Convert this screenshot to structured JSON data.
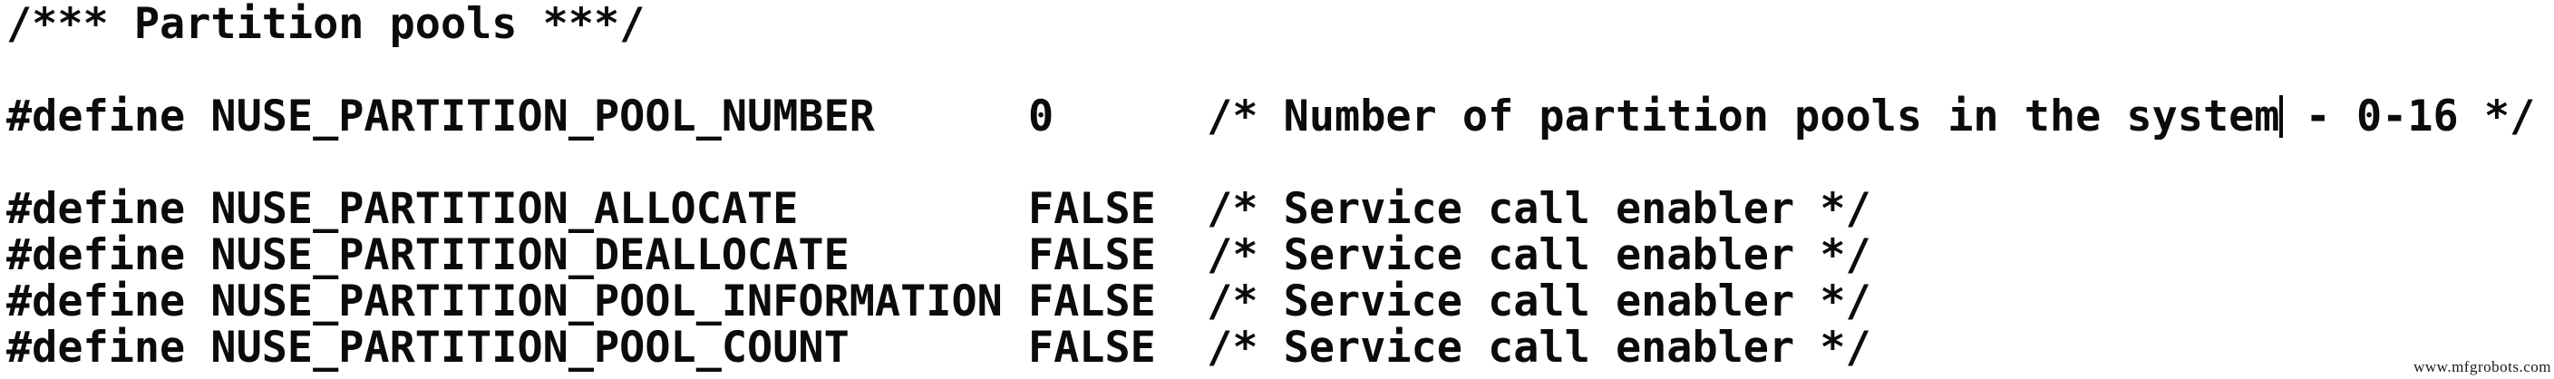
{
  "page": {
    "background_color": "#ffffff",
    "text_color": "#0b0b0b"
  },
  "code": {
    "header_comment": "/*** Partition pools ***/",
    "defines": [
      {
        "directive": "#define",
        "name": "NUSE_PARTITION_POOL_NUMBER",
        "value": "0",
        "comment_before_cursor": "/* Number of partition pools in the system",
        "comment_after_cursor": " - 0-16 */"
      },
      {
        "directive": "#define",
        "name": "NUSE_PARTITION_ALLOCATE",
        "value": "FALSE",
        "comment": "/* Service call enabler */"
      },
      {
        "directive": "#define",
        "name": "NUSE_PARTITION_DEALLOCATE",
        "value": "FALSE",
        "comment": "/* Service call enabler */"
      },
      {
        "directive": "#define",
        "name": "NUSE_PARTITION_POOL_INFORMATION",
        "value": "FALSE",
        "comment": "/* Service call enabler */"
      },
      {
        "directive": "#define",
        "name": "NUSE_PARTITION_POOL_COUNT",
        "value": "FALSE",
        "comment": "/* Service call enabler */"
      }
    ]
  },
  "watermark": {
    "text": "www.mfgrobots.com"
  }
}
